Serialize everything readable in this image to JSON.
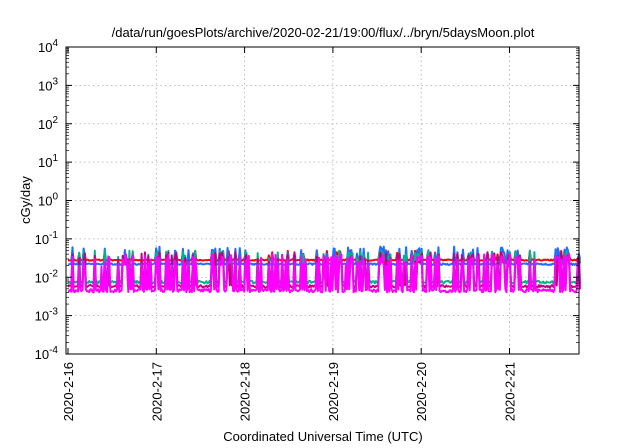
{
  "chart_data": {
    "type": "line",
    "title": "/data/run/goesPlots/archive/2020-02-21/19:00/flux/../bryn/5daysMoon.plot",
    "xlabel": "Coordinated Universal Time (UTC)",
    "ylabel": "cGy/day",
    "x_ticks": [
      "2020-2-16",
      "2020-2-17",
      "2020-2-18",
      "2020-2-19",
      "2020-2-20",
      "2020-2-21"
    ],
    "xlim_days": [
      0,
      5.8
    ],
    "y_scale": "log",
    "ylim": [
      0.0001,
      10000
    ],
    "y_ticks": [
      {
        "base": "10",
        "exp": "-4"
      },
      {
        "base": "10",
        "exp": "-3"
      },
      {
        "base": "10",
        "exp": "-2"
      },
      {
        "base": "10",
        "exp": "-1"
      },
      {
        "base": "10",
        "exp": "0"
      },
      {
        "base": "10",
        "exp": "1"
      },
      {
        "base": "10",
        "exp": "2"
      },
      {
        "base": "10",
        "exp": "3"
      },
      {
        "base": "10",
        "exp": "4"
      }
    ],
    "grid": true,
    "series": [
      {
        "color": "#ff0000",
        "baseline": 0.028,
        "spike": 0.05,
        "spike_prob": 0.25,
        "noise": 0.04,
        "seed": 11
      },
      {
        "color": "#1e6fff",
        "baseline": 0.022,
        "spike": 0.065,
        "spike_prob": 0.22,
        "noise": 0.05,
        "seed": 23
      },
      {
        "color": "#00b389",
        "baseline": 0.0075,
        "spike": 0.05,
        "spike_prob": 0.35,
        "noise": 0.08,
        "seed": 37
      },
      {
        "color": "#c20085",
        "baseline": 0.0058,
        "spike": 0.045,
        "spike_prob": 0.35,
        "noise": 0.08,
        "seed": 51
      },
      {
        "color": "#ff00ff",
        "baseline": 0.0045,
        "spike": 0.04,
        "spike_prob": 0.38,
        "noise": 0.1,
        "seed": 67
      }
    ]
  }
}
